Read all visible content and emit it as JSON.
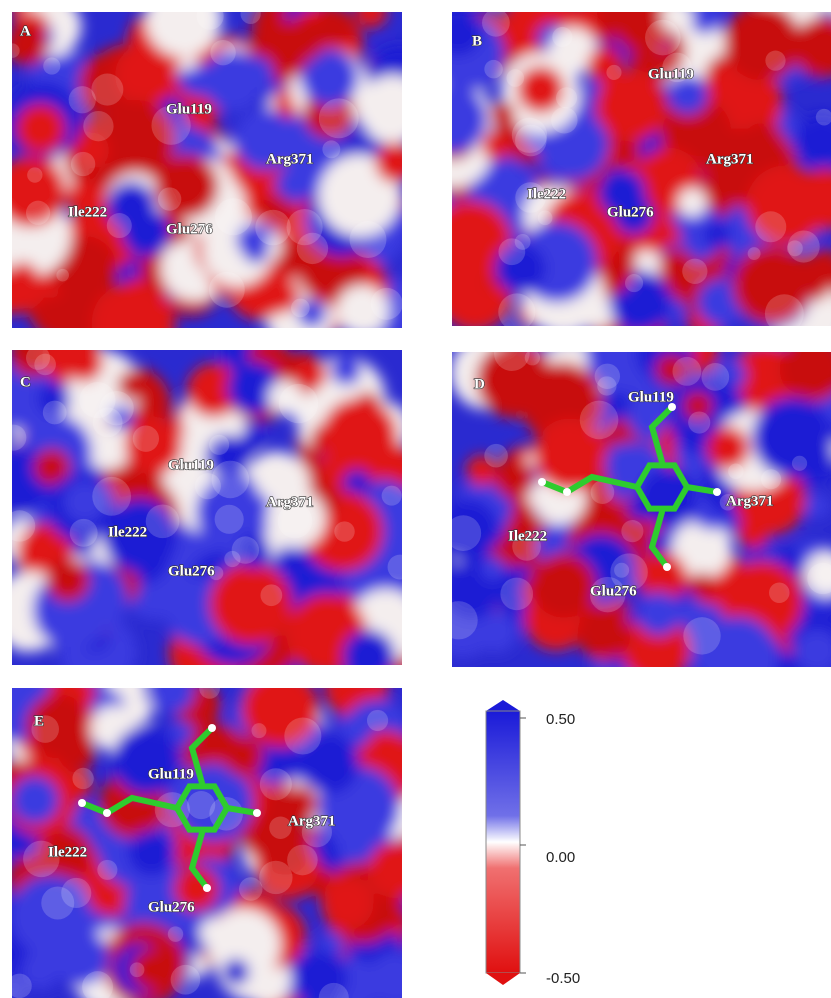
{
  "panels": [
    {
      "letter": "A",
      "labels": [
        "Glu119",
        "Arg371",
        "Ile222",
        "Glu276"
      ]
    },
    {
      "letter": "B",
      "labels": [
        "Glu119",
        "Arg371",
        "Ile222",
        "Glu276"
      ]
    },
    {
      "letter": "C",
      "labels": [
        "Glu119",
        "Arg371",
        "Ile222",
        "Glu276"
      ]
    },
    {
      "letter": "D",
      "labels": [
        "Glu119",
        "Arg371",
        "Ile222",
        "Glu276"
      ]
    },
    {
      "letter": "E",
      "labels": [
        "Glu119",
        "Arg371",
        "Ile222",
        "Glu276"
      ]
    }
  ],
  "colorbar": {
    "max_label": "0.50",
    "mid_label": "0.00",
    "min_label": "-0.50"
  }
}
